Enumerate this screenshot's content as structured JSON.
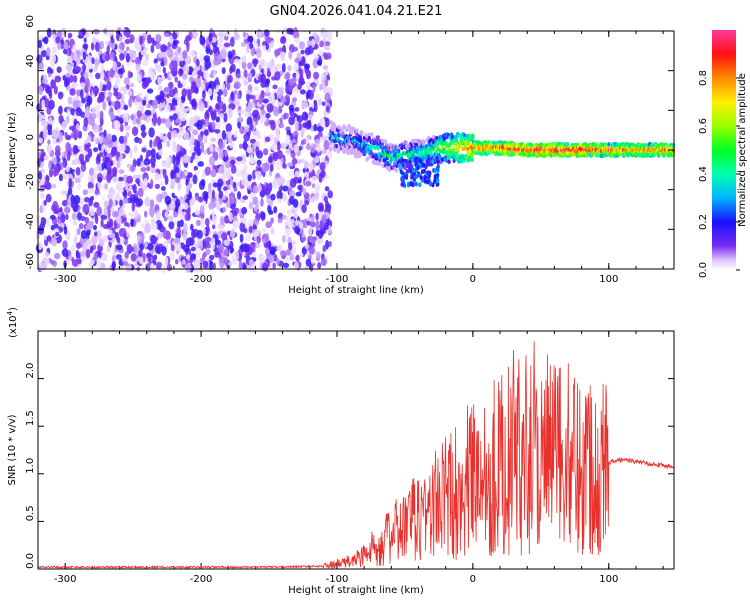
{
  "title": "GN04.2026.041.04.21.E21",
  "chart_data": [
    {
      "type": "heatmap",
      "name": "spectrogram",
      "xlabel": "Height of straight line (km)",
      "ylabel": "Frequency (Hz)",
      "xlim": [
        -320,
        148
      ],
      "ylim": [
        -60,
        60
      ],
      "x_ticks": [
        -300,
        -200,
        -100,
        0,
        100
      ],
      "y_ticks": [
        -60,
        -40,
        -20,
        0,
        20,
        40,
        60
      ],
      "colorbar": {
        "label": "Normalized spectral amplitude",
        "range": [
          0,
          1
        ],
        "ticks": [
          "0.0",
          "0.2",
          "0.4",
          "0.6",
          "0.8"
        ],
        "tick_values": [
          0,
          0.2,
          0.4,
          0.6,
          0.8
        ]
      },
      "noise_region": {
        "x_range": [
          -320,
          -105
        ],
        "y_range": [
          -60,
          60
        ],
        "typical_amplitude": 0.15
      },
      "signal_track": [
        {
          "x": -105,
          "y": 7,
          "amp": 0.3
        },
        {
          "x": -90,
          "y": 5,
          "amp": 0.3
        },
        {
          "x": -80,
          "y": 2,
          "amp": 0.35
        },
        {
          "x": -70,
          "y": 0,
          "amp": 0.4
        },
        {
          "x": -60,
          "y": -4,
          "amp": 0.4
        },
        {
          "x": -50,
          "y": -3,
          "amp": 0.45
        },
        {
          "x": -40,
          "y": -2,
          "amp": 0.4
        },
        {
          "x": -30,
          "y": 0,
          "amp": 0.45
        },
        {
          "x": -20,
          "y": 1,
          "amp": 0.6
        },
        {
          "x": -10,
          "y": 1,
          "amp": 0.7
        },
        {
          "x": 0,
          "y": 1,
          "amp": 0.8
        },
        {
          "x": 20,
          "y": 1,
          "amp": 0.85
        },
        {
          "x": 40,
          "y": 0,
          "amp": 0.9
        },
        {
          "x": 60,
          "y": 0,
          "amp": 0.9
        },
        {
          "x": 80,
          "y": 0,
          "amp": 0.9
        },
        {
          "x": 100,
          "y": 0,
          "amp": 0.8
        },
        {
          "x": 148,
          "y": 0,
          "amp": 0.8
        }
      ]
    },
    {
      "type": "line",
      "name": "snr",
      "xlabel": "Height of straight line (km)",
      "ylabel": "SNR (10 * v/v)",
      "y_multiplier": "(x10",
      "y_multiplier_exp": "4",
      "y_multiplier_close": ")",
      "xlim": [
        -320,
        148
      ],
      "ylim": [
        0,
        2.5
      ],
      "x_ticks": [
        -300,
        -200,
        -100,
        0,
        100
      ],
      "y_ticks": [
        0,
        0.5,
        1.0,
        1.5,
        2.0
      ],
      "y_tick_labels": [
        "0.0",
        "0.5",
        "1.0",
        "1.5",
        "2.0"
      ],
      "color": "#e8302c",
      "envelope": [
        {
          "x": -320,
          "y": 0.02
        },
        {
          "x": -150,
          "y": 0.02
        },
        {
          "x": -110,
          "y": 0.03
        },
        {
          "x": -90,
          "y": 0.08
        },
        {
          "x": -80,
          "y": 0.15
        },
        {
          "x": -70,
          "y": 0.25
        },
        {
          "x": -60,
          "y": 0.35
        },
        {
          "x": -50,
          "y": 0.45
        },
        {
          "x": -40,
          "y": 0.55
        },
        {
          "x": -30,
          "y": 0.65
        },
        {
          "x": -20,
          "y": 0.75
        },
        {
          "x": -10,
          "y": 0.85
        },
        {
          "x": 0,
          "y": 0.95
        },
        {
          "x": 10,
          "y": 1.05
        },
        {
          "x": 20,
          "y": 1.1
        },
        {
          "x": 30,
          "y": 1.15
        },
        {
          "x": 40,
          "y": 1.2
        },
        {
          "x": 50,
          "y": 1.2
        },
        {
          "x": 60,
          "y": 1.18
        },
        {
          "x": 70,
          "y": 1.15
        },
        {
          "x": 80,
          "y": 1.12
        },
        {
          "x": 90,
          "y": 1.12
        },
        {
          "x": 100,
          "y": 1.12
        },
        {
          "x": 110,
          "y": 1.15
        },
        {
          "x": 148,
          "y": 1.07
        }
      ],
      "peaks": [
        {
          "x": -72,
          "y": 0.3
        },
        {
          "x": -44,
          "y": 0.65
        },
        {
          "x": -20,
          "y": 1.05
        },
        {
          "x": -2,
          "y": 1.45
        },
        {
          "x": 20,
          "y": 1.9
        },
        {
          "x": 30,
          "y": 2.3
        },
        {
          "x": 39,
          "y": 2.45
        },
        {
          "x": 45,
          "y": 2.5
        },
        {
          "x": 60,
          "y": 1.9
        },
        {
          "x": 70,
          "y": 1.75
        },
        {
          "x": 95,
          "y": 1.65
        }
      ]
    }
  ]
}
